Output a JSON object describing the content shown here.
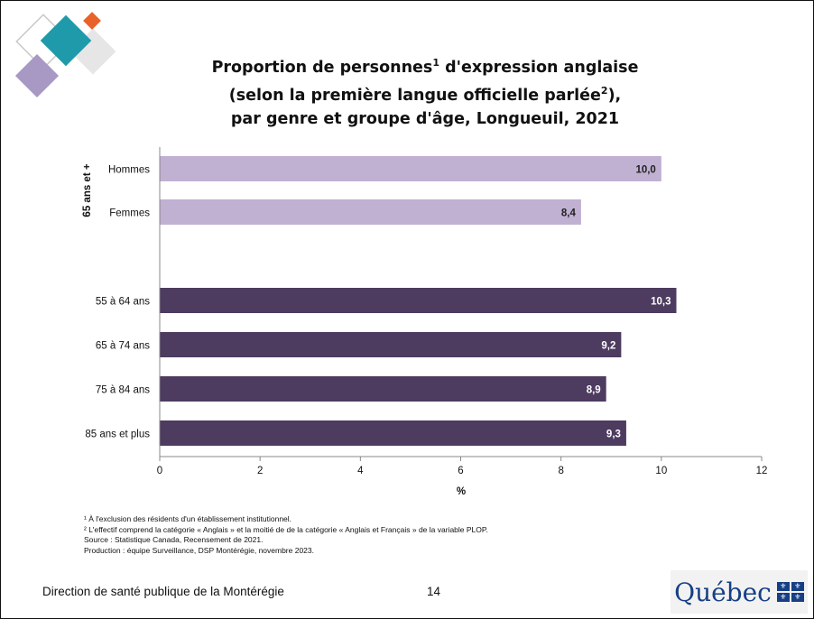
{
  "title": {
    "line1_a": "Proportion de personnes",
    "line1_sup": "1",
    "line1_b": " d'expression anglaise",
    "line2_a": "(selon la première langue officielle parlée",
    "line2_sup": "2",
    "line2_b": "),",
    "line3": "par genre et groupe d'âge, Longueuil, 2021"
  },
  "chart_data": {
    "type": "bar",
    "orientation": "horizontal",
    "xlabel": "%",
    "xlim": [
      0,
      12
    ],
    "xticks": [
      "0",
      "2",
      "4",
      "6",
      "8",
      "10",
      "12"
    ],
    "group_label": "65 ans et +",
    "categories": [
      "Hommes",
      "Femmes",
      "55 à 64 ans",
      "65 à 74 ans",
      "75 à 84 ans",
      "85 ans et plus"
    ],
    "values": [
      10.0,
      8.4,
      10.3,
      9.2,
      8.9,
      9.3
    ],
    "value_labels": [
      "10,0",
      "8,4",
      "10,3",
      "9,2",
      "8,9",
      "9,3"
    ],
    "colors": [
      "#c0b0d2",
      "#c0b0d2",
      "#4d3b60",
      "#4d3b60",
      "#4d3b60",
      "#4d3b60"
    ],
    "label_colors": [
      "#222222",
      "#222222",
      "#ffffff",
      "#ffffff",
      "#ffffff",
      "#ffffff"
    ],
    "grid": false
  },
  "notes": [
    "¹ À l'exclusion des résidents d'un établissement institutionnel.",
    "² L'effectif comprend la catégorie « Anglais » et la moitié de de la catégorie « Anglais et Français » de la variable PLOP.",
    "Source : Statistique Canada, Recensement de 2021.",
    "Production : équipe Surveillance, DSP Montérégie, novembre 2023."
  ],
  "footer": {
    "organization": "Direction de santé publique de la Montérégie",
    "page_number": "14",
    "logo_text": "Québec"
  },
  "logo_colors": {
    "teal": "#1f9aaa",
    "orange": "#e8622a",
    "lavender": "#a798c4",
    "gray": "#e6e6e6"
  }
}
